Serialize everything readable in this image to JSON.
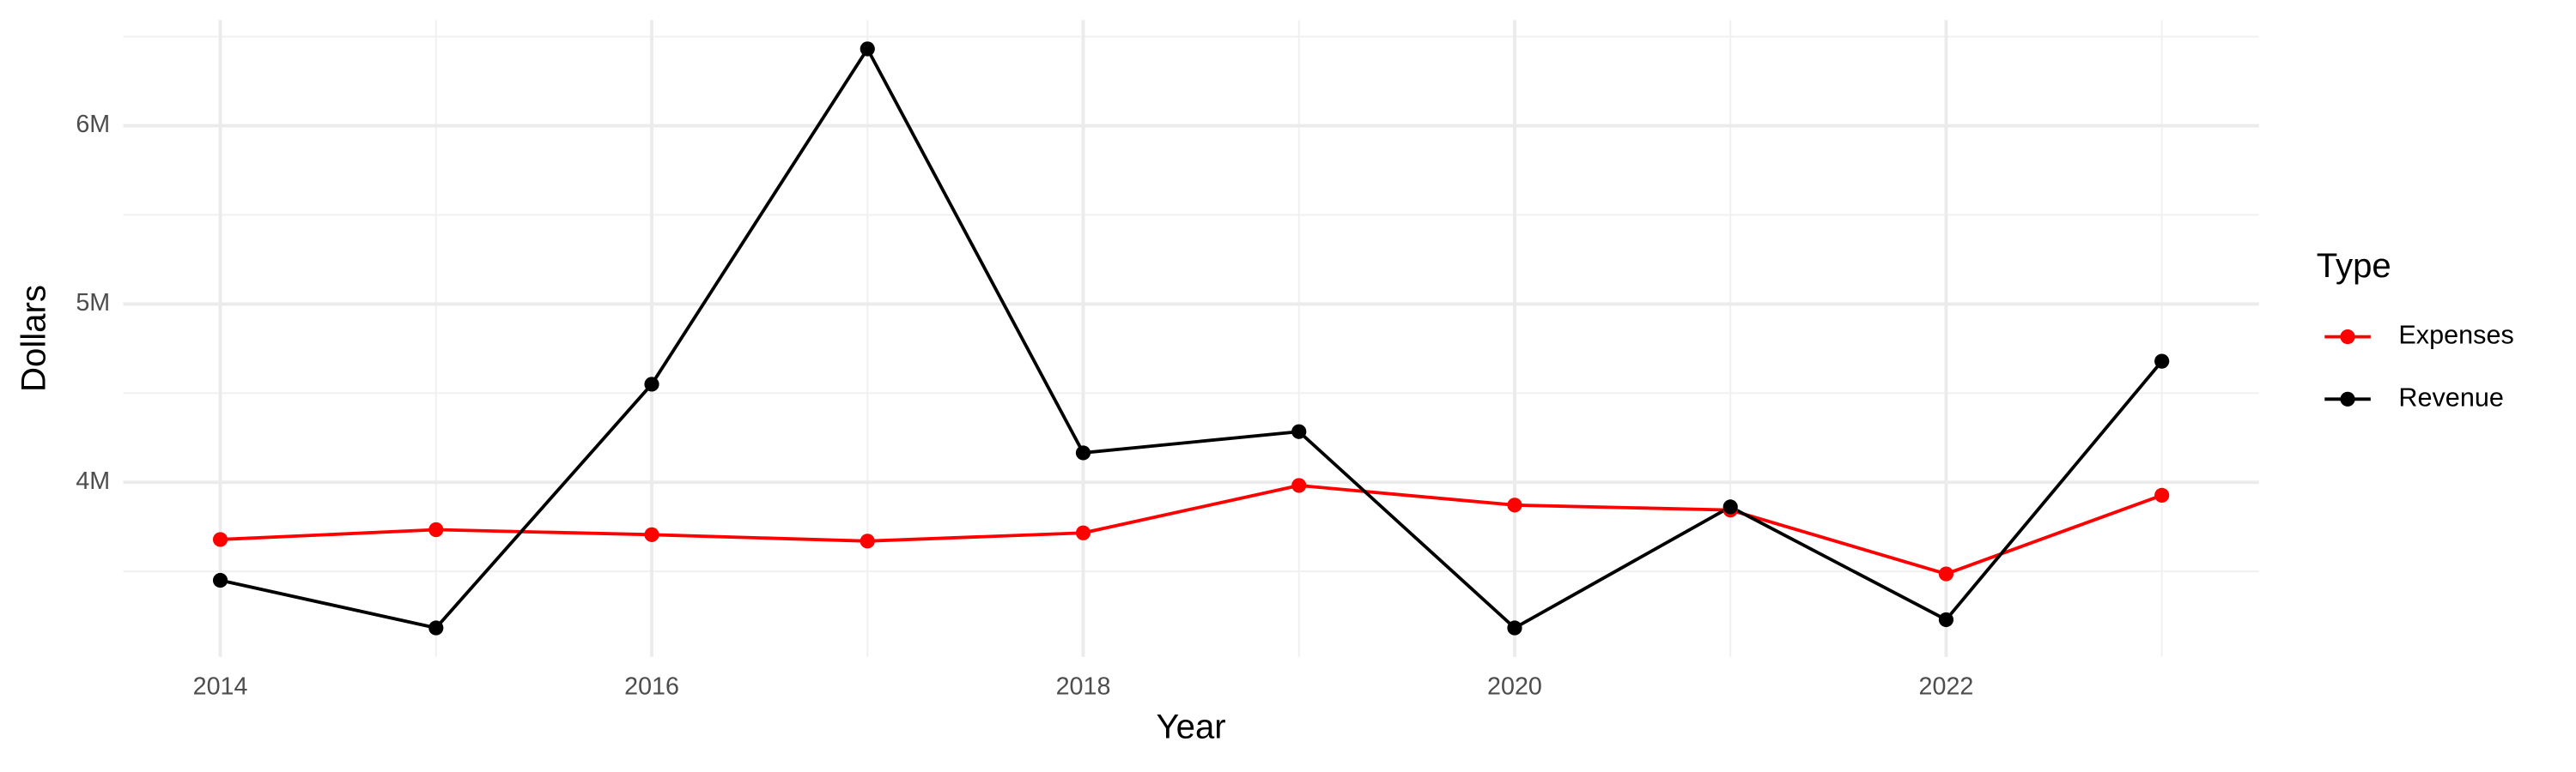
{
  "chart_data": {
    "type": "line",
    "x_label": "Year",
    "y_label": "Dollars",
    "x": [
      2014,
      2015,
      2016,
      2017,
      2018,
      2019,
      2020,
      2021,
      2022,
      2023
    ],
    "series": [
      {
        "name": "Expenses",
        "color": "#ff0000",
        "values": [
          3679000,
          3734000,
          3706000,
          3670000,
          3716000,
          3982000,
          3872000,
          3844000,
          3486000,
          3927000
        ]
      },
      {
        "name": "Revenue",
        "color": "#000000",
        "values": [
          3450000,
          3183000,
          4550000,
          6431000,
          4165000,
          4284000,
          3183000,
          3862000,
          3229000,
          4679000
        ]
      }
    ],
    "xlim": [
      2013.55,
      2023.45
    ],
    "xticks": [
      2014,
      2016,
      2018,
      2020,
      2022
    ],
    "x_minor_ticks": [
      2015,
      2017,
      2019,
      2021,
      2023
    ],
    "ylim": [
      3021000,
      6593000
    ],
    "yticks": [
      {
        "value": 4000000,
        "label": "4M"
      },
      {
        "value": 5000000,
        "label": "5M"
      },
      {
        "value": 6000000,
        "label": "6M"
      }
    ],
    "y_minor_ticks": [
      3500000,
      4500000,
      5500000,
      6500000
    ],
    "grid": true,
    "legend_title": "Type",
    "legend_position": "right"
  }
}
